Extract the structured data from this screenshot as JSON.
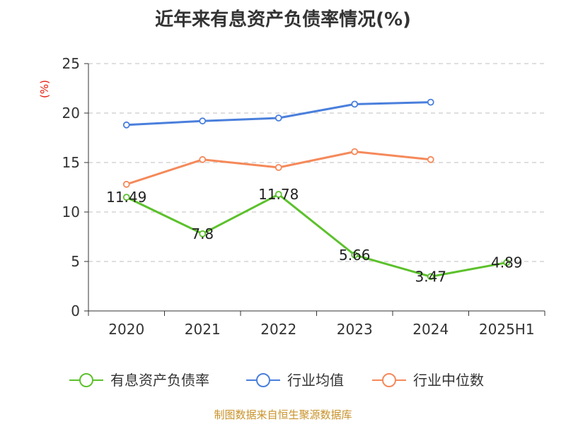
{
  "chart_data": {
    "type": "line",
    "title": "近年来有息资产负债率情况(%)",
    "unit_label": "(%)",
    "categories": [
      "2020",
      "2021",
      "2022",
      "2023",
      "2024",
      "2025H1"
    ],
    "ylim": [
      0,
      25
    ],
    "yticks": [
      0,
      5,
      10,
      15,
      20,
      25
    ],
    "grid": true,
    "legend_position": "bottom",
    "series": [
      {
        "name": "有息资产负债率",
        "color": "#5cc12c",
        "values": [
          11.49,
          7.8,
          11.78,
          5.66,
          3.47,
          4.89
        ],
        "labels": [
          "11.49",
          "7.8",
          "11.78",
          "5.66",
          "3.47",
          "4.89"
        ]
      },
      {
        "name": "行业均值",
        "color": "#4a7fdc",
        "values": [
          18.8,
          19.2,
          19.5,
          20.9,
          21.1,
          null
        ]
      },
      {
        "name": "行业中位数",
        "color": "#f5895a",
        "values": [
          12.8,
          15.3,
          14.5,
          16.1,
          15.3,
          null
        ]
      }
    ],
    "source": "制图数据来自恒生聚源数据库"
  }
}
